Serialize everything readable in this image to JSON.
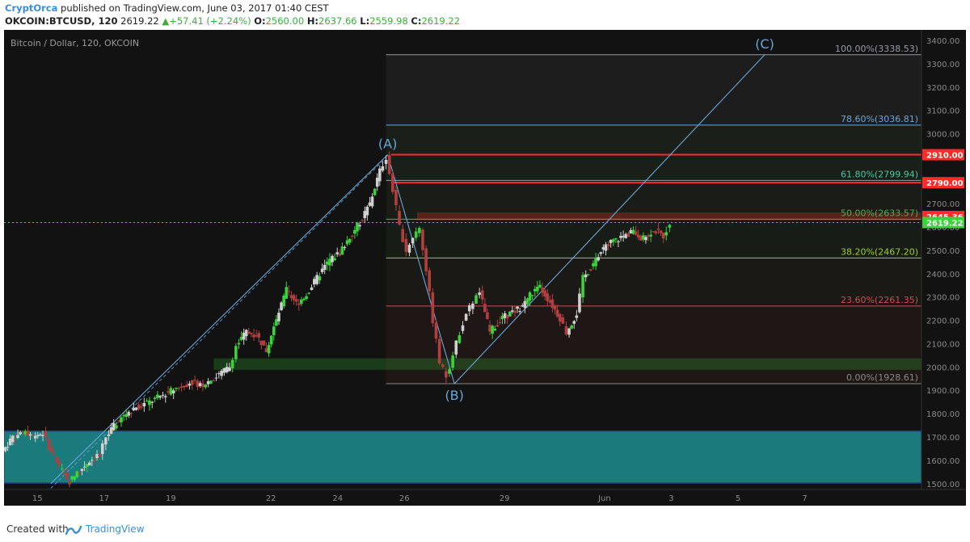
{
  "header": {
    "author": "CryptOrca",
    "published_text": "published on TradingView.com, June 03, 2017 01:40 CEST",
    "symbol": "OKCOIN:BTCUSD, 120",
    "last_price": "2619.22",
    "change": "▲+57.41 (+2.24%)",
    "o_label": "O:",
    "o_value": "2560.00",
    "h_label": "H:",
    "h_value": "2637.66",
    "l_label": "L:",
    "l_value": "2559.98",
    "c_label": "C:",
    "c_value": "2619.22"
  },
  "chart_title": "Bitcoin / Dollar, 120, OKCOIN",
  "footer": {
    "created_with": "Created with",
    "brand": "TradingView"
  },
  "colors": {
    "background": "#121212",
    "candle_up": "#c8c8c8",
    "candle_green": "#3bd23b",
    "zone_green": "#3bd23b",
    "zone_teal": "#1e9ea0",
    "resistance_red": "#ff2a2a",
    "fib_blue": "#6aa7d8",
    "accent": "#3b8fd6"
  },
  "chart_data": {
    "type": "candlestick",
    "title": "Bitcoin / Dollar, 120, OKCOIN",
    "ylim": [
      1475,
      3445
    ],
    "xlim": [
      0,
      27.5
    ],
    "x_unit": "days since May 14, 2017 00:00",
    "y_ticks": [
      1500,
      1600,
      1700,
      1800,
      1900,
      2000,
      2100,
      2200,
      2300,
      2400,
      2500,
      2600,
      2700,
      2800,
      2900,
      3000,
      3100,
      3200,
      3300,
      3400
    ],
    "x_ticks": [
      {
        "x": 1,
        "label": "15"
      },
      {
        "x": 3,
        "label": "17"
      },
      {
        "x": 5,
        "label": "19"
      },
      {
        "x": 8,
        "label": "22"
      },
      {
        "x": 10,
        "label": "24"
      },
      {
        "x": 12,
        "label": "26"
      },
      {
        "x": 15,
        "label": "29"
      },
      {
        "x": 18,
        "label": "Jun"
      },
      {
        "x": 20,
        "label": "3"
      },
      {
        "x": 22,
        "label": "5"
      },
      {
        "x": 24,
        "label": "7"
      }
    ],
    "price_path": [
      [
        0.0,
        1640
      ],
      [
        0.3,
        1700
      ],
      [
        0.6,
        1720
      ],
      [
        0.9,
        1705
      ],
      [
        1.2,
        1715
      ],
      [
        1.4,
        1660
      ],
      [
        1.7,
        1570
      ],
      [
        2.0,
        1510
      ],
      [
        2.3,
        1555
      ],
      [
        2.6,
        1600
      ],
      [
        2.9,
        1620
      ],
      [
        3.1,
        1700
      ],
      [
        3.4,
        1760
      ],
      [
        3.7,
        1800
      ],
      [
        4.0,
        1830
      ],
      [
        4.4,
        1850
      ],
      [
        4.8,
        1880
      ],
      [
        5.2,
        1910
      ],
      [
        5.6,
        1935
      ],
      [
        6.0,
        1925
      ],
      [
        6.4,
        1960
      ],
      [
        6.8,
        2000
      ],
      [
        7.0,
        2090
      ],
      [
        7.3,
        2150
      ],
      [
        7.6,
        2140
      ],
      [
        7.9,
        2070
      ],
      [
        8.2,
        2200
      ],
      [
        8.5,
        2330
      ],
      [
        8.8,
        2270
      ],
      [
        9.1,
        2310
      ],
      [
        9.5,
        2400
      ],
      [
        9.8,
        2460
      ],
      [
        10.1,
        2490
      ],
      [
        10.4,
        2560
      ],
      [
        10.7,
        2620
      ],
      [
        11.0,
        2700
      ],
      [
        11.3,
        2840
      ],
      [
        11.5,
        2900
      ],
      [
        11.7,
        2760
      ],
      [
        11.9,
        2600
      ],
      [
        12.1,
        2500
      ],
      [
        12.3,
        2560
      ],
      [
        12.5,
        2600
      ],
      [
        12.7,
        2420
      ],
      [
        12.9,
        2200
      ],
      [
        13.1,
        2020
      ],
      [
        13.3,
        1960
      ],
      [
        13.5,
        2050
      ],
      [
        13.7,
        2150
      ],
      [
        13.9,
        2230
      ],
      [
        14.1,
        2280
      ],
      [
        14.3,
        2320
      ],
      [
        14.6,
        2150
      ],
      [
        14.9,
        2200
      ],
      [
        15.2,
        2230
      ],
      [
        15.5,
        2250
      ],
      [
        15.8,
        2310
      ],
      [
        16.1,
        2340
      ],
      [
        16.4,
        2280
      ],
      [
        16.7,
        2210
      ],
      [
        16.9,
        2150
      ],
      [
        17.2,
        2230
      ],
      [
        17.4,
        2380
      ],
      [
        17.7,
        2440
      ],
      [
        18.0,
        2510
      ],
      [
        18.3,
        2540
      ],
      [
        18.6,
        2560
      ],
      [
        18.9,
        2580
      ],
      [
        19.2,
        2550
      ],
      [
        19.5,
        2590
      ],
      [
        19.8,
        2560
      ],
      [
        20.0,
        2619
      ]
    ],
    "swing_labels": [
      {
        "label": "(A)",
        "x": 11.5,
        "y": 2910
      },
      {
        "label": "(B)",
        "x": 13.5,
        "y": 1928.61
      },
      {
        "label": "(C)",
        "x": 22.8,
        "y": 3338.53
      }
    ],
    "trend_lines": [
      {
        "from": [
          1.4,
          1500
        ],
        "to": [
          11.5,
          2910
        ]
      },
      {
        "from": [
          11.5,
          2910
        ],
        "to": [
          13.5,
          1928.61
        ]
      },
      {
        "from": [
          13.5,
          1928.61
        ],
        "to": [
          22.8,
          3338.53
        ]
      }
    ],
    "fib_levels": [
      {
        "ratio": "100.00%",
        "price": 3338.53,
        "label": "100.00%(3338.53)",
        "color": "#9a9aa8"
      },
      {
        "ratio": "78.60%",
        "price": 3036.81,
        "label": "78.60%(3036.81)",
        "color": "#6aa7d8"
      },
      {
        "ratio": "61.80%",
        "price": 2799.94,
        "label": "61.80%(2799.94)",
        "color": "#4fc3a8"
      },
      {
        "ratio": "50.00%",
        "price": 2633.57,
        "label": "50.00%(2633.57)",
        "color": "#4caf50"
      },
      {
        "ratio": "38.20%",
        "price": 2467.2,
        "label": "38.20%(2467.20)",
        "color": "#9acd32"
      },
      {
        "ratio": "23.60%",
        "price": 2261.35,
        "label": "23.60%(2261.35)",
        "color": "#c85050"
      },
      {
        "ratio": "0.00%",
        "price": 1928.61,
        "label": "0.00%(1928.61)",
        "color": "#8a8a8a"
      }
    ],
    "zones": [
      {
        "name": "support",
        "y1": 1990,
        "y2": 2035,
        "color": "#3bd23b"
      },
      {
        "name": "demand",
        "y1": 1503,
        "y2": 1725,
        "color": "#1e9ea0"
      },
      {
        "name": "resistance",
        "y1": 2632,
        "y2": 2660,
        "color": "#ff2a2a"
      }
    ],
    "red_lines": [
      {
        "price": 2910,
        "label": "2910.00"
      },
      {
        "price": 2790,
        "label": "2790.00"
      }
    ],
    "price_labels": [
      {
        "price": 2645.36,
        "label": "2645.36",
        "color": "#ff2a2a"
      },
      {
        "price": 2619.22,
        "label": "2619.22",
        "color": "#3bd23b"
      }
    ]
  }
}
